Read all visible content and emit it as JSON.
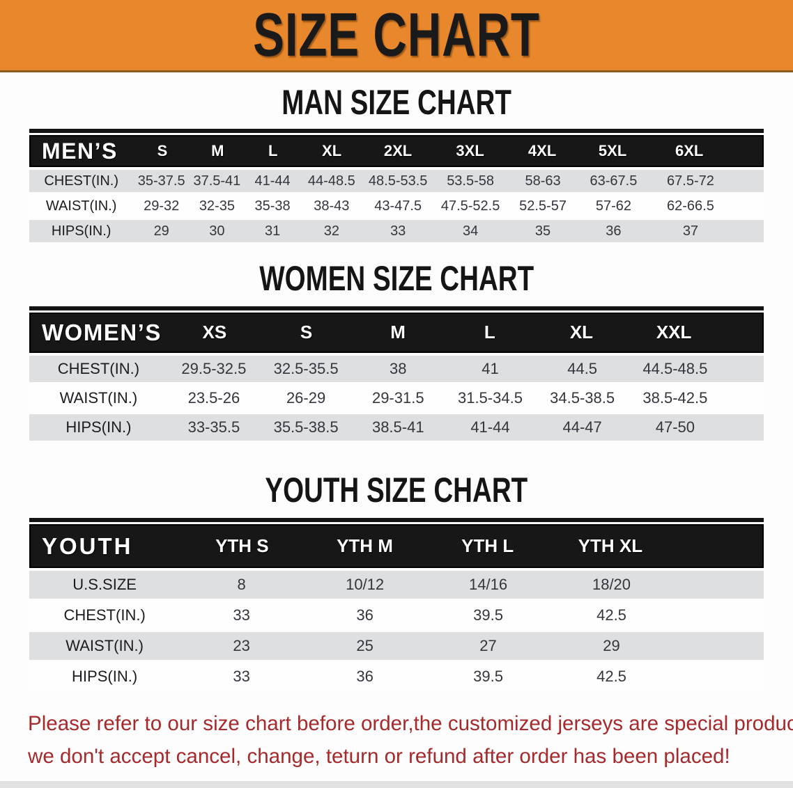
{
  "banner": {
    "title": "SIZE CHART",
    "bg_color": "#E8872B",
    "text_color": "#1A1A1A"
  },
  "chart_data": [
    {
      "type": "table",
      "title": "MAN SIZE CHART",
      "group_label": "MEN’S",
      "columns": [
        "S",
        "M",
        "L",
        "XL",
        "2XL",
        "3XL",
        "4XL",
        "5XL",
        "6XL"
      ],
      "rows": [
        {
          "label": "CHEST(IN.)",
          "values": [
            "35-37.5",
            "37.5-41",
            "41-44",
            "44-48.5",
            "48.5-53.5",
            "53.5-58",
            "58-63",
            "63-67.5",
            "67.5-72"
          ]
        },
        {
          "label": "WAIST(IN.)",
          "values": [
            "29-32",
            "32-35",
            "35-38",
            "38-43",
            "43-47.5",
            "47.5-52.5",
            "52.5-57",
            "57-62",
            "62-66.5"
          ]
        },
        {
          "label": "HIPS(IN.)",
          "values": [
            "29",
            "30",
            "31",
            "32",
            "33",
            "34",
            "35",
            "36",
            "37"
          ]
        }
      ]
    },
    {
      "type": "table",
      "title": "WOMEN SIZE CHART",
      "group_label": "WOMEN’S",
      "columns": [
        "XS",
        "S",
        "M",
        "L",
        "XL",
        "XXL"
      ],
      "rows": [
        {
          "label": "CHEST(IN.)",
          "values": [
            "29.5-32.5",
            "32.5-35.5",
            "38",
            "41",
            "44.5",
            "44.5-48.5"
          ]
        },
        {
          "label": "WAIST(IN.)",
          "values": [
            "23.5-26",
            "26-29",
            "29-31.5",
            "31.5-34.5",
            "34.5-38.5",
            "38.5-42.5"
          ]
        },
        {
          "label": "HIPS(IN.)",
          "values": [
            "33-35.5",
            "35.5-38.5",
            "38.5-41",
            "41-44",
            "44-47",
            "47-50"
          ]
        }
      ]
    },
    {
      "type": "table",
      "title": "YOUTH SIZE CHART",
      "group_label": "YOUTH",
      "columns": [
        "YTH S",
        "YTH M",
        "YTH L",
        "YTH XL"
      ],
      "rows": [
        {
          "label": "U.S.SIZE",
          "values": [
            "8",
            "10/12",
            "14/16",
            "18/20"
          ]
        },
        {
          "label": "CHEST(IN.)",
          "values": [
            "33",
            "36",
            "39.5",
            "42.5"
          ]
        },
        {
          "label": "WAIST(IN.)",
          "values": [
            "23",
            "25",
            "27",
            "29"
          ]
        },
        {
          "label": "HIPS(IN.)",
          "values": [
            "33",
            "36",
            "39.5",
            "42.5"
          ]
        }
      ]
    }
  ],
  "disclaimer": {
    "line1": "Please refer to our size chart before order,the customized jerseys are special products,",
    "line2": "we don't accept cancel, change, teturn or refund after order has been placed!",
    "text_color": "#A6292B"
  },
  "colors": {
    "header_row_bg": "#171717",
    "header_row_text": "#FFFFFF",
    "stripe_row_bg": "#DEDFE1",
    "plain_row_bg": "#FEFEFE",
    "value_text": "#34353D",
    "bottom_strip": "#E2E2E2"
  }
}
